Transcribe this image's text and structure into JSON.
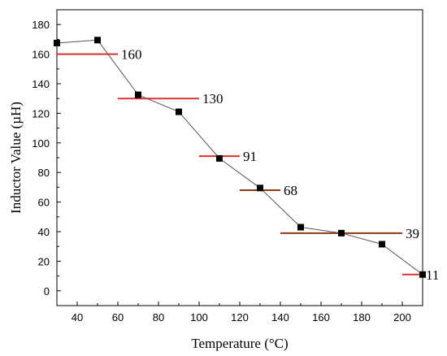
{
  "chart_data": {
    "type": "line",
    "xlabel": "Temperature (°C)",
    "ylabel": "Inductor Value (µH)",
    "xlim": [
      30,
      210
    ],
    "ylim": [
      -10,
      190
    ],
    "xticks": [
      "40",
      "60",
      "80",
      "100",
      "120",
      "140",
      "160",
      "180",
      "200"
    ],
    "yticks": [
      "0",
      "20",
      "40",
      "60",
      "80",
      "100",
      "120",
      "140",
      "160",
      "180"
    ],
    "grid": false,
    "series": [
      {
        "x": [
          30,
          50,
          70,
          90,
          110,
          130,
          150,
          170,
          190,
          210
        ],
        "y": [
          167.5,
          169.5,
          132.5,
          121,
          89.5,
          69.5,
          43,
          39,
          31.5,
          11
        ]
      }
    ],
    "bands": [
      {
        "label": "160",
        "y": 160,
        "x_start": 30,
        "x_end": 60,
        "color": "#e03030"
      },
      {
        "label": "130",
        "y": 130,
        "x_start": 60,
        "x_end": 100,
        "color": "#e03030"
      },
      {
        "label": "91",
        "y": 91,
        "x_start": 100,
        "x_end": 120,
        "color": "#e03030"
      },
      {
        "label": "68",
        "y": 68,
        "x_start": 120,
        "x_end": 140,
        "color": "#8b3a1a"
      },
      {
        "label": "39",
        "y": 39,
        "x_start": 140,
        "x_end": 200,
        "color": "#8b3a1a"
      },
      {
        "label": "11",
        "y": 11,
        "x_start": 200,
        "x_end": 210,
        "color": "#e03030"
      }
    ]
  }
}
